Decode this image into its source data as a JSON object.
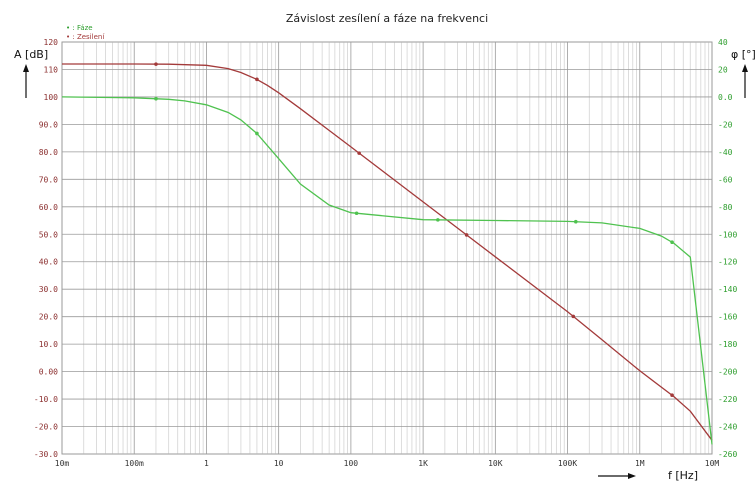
{
  "chart_data": {
    "type": "line",
    "title": "Závislost zesílení a fáze na frekvenci",
    "xlabel": "f [Hz]",
    "ylabel_left": "A [dB]",
    "ylabel_right": "φ [°]",
    "x_scale": "log",
    "xlim": [
      0.01,
      10000000
    ],
    "ylim_left": [
      -30,
      120
    ],
    "ylim_right": [
      -260,
      40
    ],
    "grid": true,
    "legend_position": "top-left",
    "x_ticks": [
      {
        "value": 0.01,
        "label": "10m"
      },
      {
        "value": 0.1,
        "label": "100m"
      },
      {
        "value": 1,
        "label": "1"
      },
      {
        "value": 10,
        "label": "10"
      },
      {
        "value": 100,
        "label": "100"
      },
      {
        "value": 1000,
        "label": "1K"
      },
      {
        "value": 10000,
        "label": "10K"
      },
      {
        "value": 100000,
        "label": "100K"
      },
      {
        "value": 1000000,
        "label": "1M"
      },
      {
        "value": 10000000,
        "label": "10M"
      }
    ],
    "y_ticks_left": [
      "120",
      "110",
      "100",
      "90.0",
      "80.0",
      "70.0",
      "60.0",
      "50.0",
      "40.0",
      "30.0",
      "20.0",
      "10.0",
      "0.00",
      "-10.0",
      "-20.0",
      "-30.0"
    ],
    "y_ticks_right": [
      "40",
      "20",
      "0.0",
      "-20",
      "-40",
      "-60",
      "-80",
      "-100",
      "-120",
      "-140",
      "-160",
      "-180",
      "-200",
      "-220",
      "-240",
      "-260"
    ],
    "series": [
      {
        "name": "Zesilení",
        "axis": "left",
        "color": "#a33a3a",
        "x": [
          0.01,
          0.03,
          0.1,
          0.3,
          1,
          2,
          3,
          5,
          7,
          10,
          20,
          50,
          100,
          1000,
          10000,
          100000,
          300000,
          1000000,
          3000000,
          5000000,
          10000000
        ],
        "y": [
          112,
          112,
          112,
          111.9,
          111.5,
          110.3,
          108.9,
          106.4,
          104.2,
          101.5,
          95.7,
          87.8,
          81.8,
          61.8,
          41.8,
          21.8,
          11.6,
          0.3,
          -9.2,
          -14.4,
          -25
        ],
        "markers_x": [
          0.2,
          5,
          130,
          4000,
          120000,
          2800000
        ]
      },
      {
        "name": "Fáze",
        "axis": "right",
        "color": "#4fc24f",
        "x": [
          0.01,
          0.1,
          0.3,
          0.5,
          1,
          2,
          3,
          5,
          10,
          20,
          50,
          100,
          1000,
          10000,
          100000,
          300000,
          1000000,
          2000000,
          3000000,
          5000000,
          10000000
        ],
        "y": [
          0,
          -0.6,
          -1.7,
          -2.9,
          -5.7,
          -11.3,
          -16.7,
          -26.6,
          -45,
          -63.4,
          -78.7,
          -84.3,
          -89.4,
          -90,
          -90.6,
          -91.7,
          -95.7,
          -101.3,
          -106.7,
          -116.6,
          -253
        ],
        "markers_x": [
          0.2,
          5,
          120,
          1600,
          130000,
          2800000
        ]
      }
    ]
  }
}
